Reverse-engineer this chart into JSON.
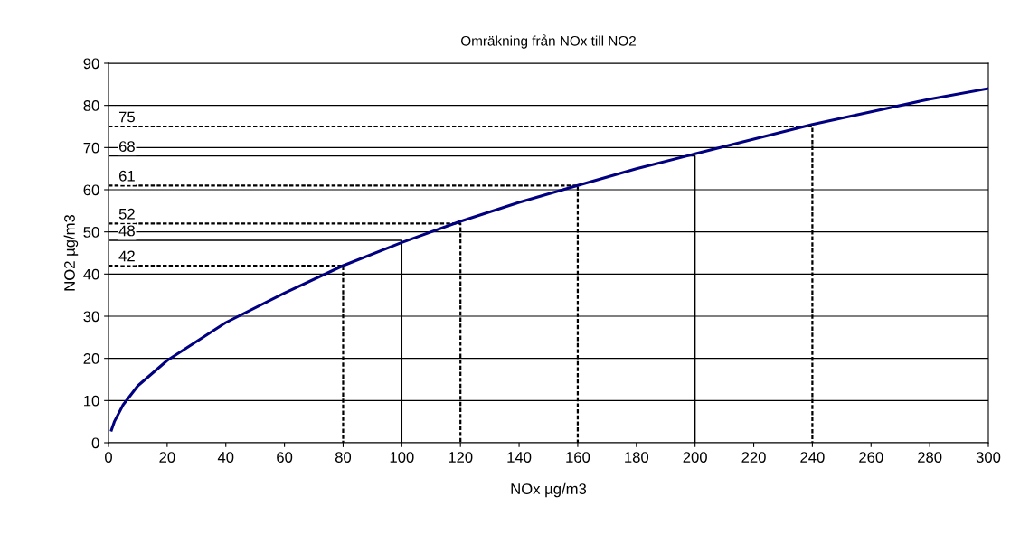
{
  "chart_data": {
    "type": "line",
    "title": "Omräkning från NOx till NO2",
    "xlabel": "NOx µg/m3",
    "ylabel": "NO2 µg/m3",
    "xlim": [
      0,
      300
    ],
    "xticks": [
      0,
      20,
      40,
      60,
      80,
      100,
      120,
      140,
      160,
      180,
      200,
      220,
      240,
      260,
      280,
      300
    ],
    "ylim": [
      0,
      90
    ],
    "yticks": [
      0,
      10,
      20,
      30,
      40,
      50,
      60,
      70,
      80,
      90
    ],
    "grid": "y",
    "marker": "none",
    "series": [
      {
        "color": "#000080",
        "line_style": "solid",
        "x": [
          1,
          2,
          5,
          10,
          20,
          40,
          60,
          80,
          100,
          120,
          140,
          160,
          180,
          200,
          220,
          240,
          260,
          280,
          300
        ],
        "values": [
          3,
          5,
          9,
          13.5,
          19.5,
          28.5,
          35.5,
          42,
          47.5,
          52.5,
          57,
          61,
          65,
          68.5,
          72,
          75.5,
          78.5,
          81.5,
          84
        ]
      },
      {
        "color": "#000000",
        "line_style": "dashed",
        "x": [
          0,
          80,
          80
        ],
        "values": [
          42,
          42,
          0
        ]
      },
      {
        "color": "#000000",
        "line_style": "solid",
        "x": [
          0,
          100,
          100
        ],
        "values": [
          48,
          48,
          0
        ]
      },
      {
        "color": "#000000",
        "line_style": "dashed",
        "x": [
          0,
          120,
          120
        ],
        "values": [
          52,
          52,
          0
        ]
      },
      {
        "color": "#000000",
        "line_style": "dashed",
        "x": [
          0,
          160,
          160
        ],
        "values": [
          61,
          61,
          0
        ]
      },
      {
        "color": "#000000",
        "line_style": "solid",
        "x": [
          0,
          200,
          200
        ],
        "values": [
          68,
          68,
          0
        ]
      },
      {
        "color": "#000000",
        "line_style": "dashed",
        "x": [
          0,
          240,
          240
        ],
        "values": [
          75,
          75,
          0
        ]
      }
    ],
    "annotations": [
      {
        "text": "42",
        "y": 42
      },
      {
        "text": "48",
        "y": 48
      },
      {
        "text": "52",
        "y": 52
      },
      {
        "text": "61",
        "y": 61
      },
      {
        "text": "68",
        "y": 68
      },
      {
        "text": "75",
        "y": 75
      }
    ]
  }
}
